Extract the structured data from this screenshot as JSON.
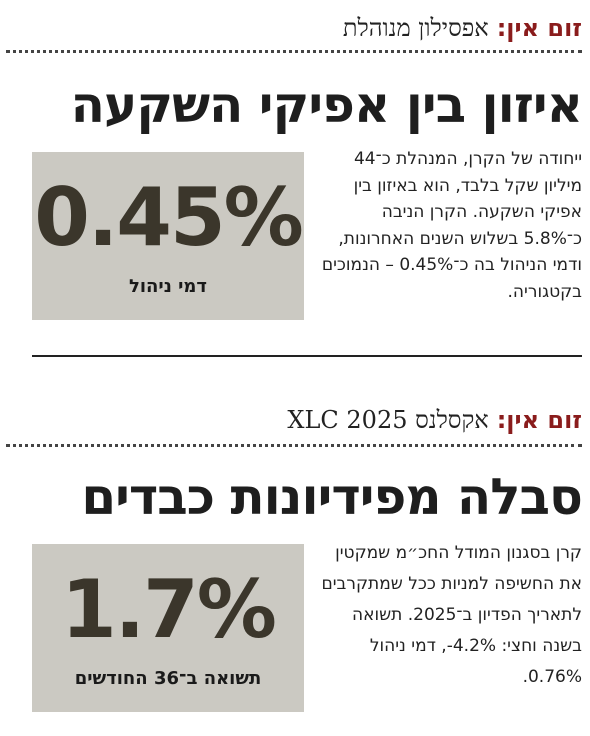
{
  "items": [
    {
      "tag_label": "זום אין:",
      "tag_name": "אפסילון מנוהלת",
      "headline": "איזון בין אפיקי השקעה",
      "body": "ייחודה של הקרן, המנהלת כ־44 מיליון שקל בלבד, הוא באיזון בין אפיקי השקעה. הקרן הניבה כ־5.8% בשלוש השנים האחרונות, ודמי הניהול בה כ־0.45% – הנמוכים בקטגוריה.",
      "stat_value": "0.45%",
      "stat_label": "דמי ניהול"
    },
    {
      "tag_label": "זום אין:",
      "tag_name": "אקסלנס XLC 2025",
      "headline": "סבלה מפידיונות כבדים",
      "body": "קרן בסגנון המודל החכ״מ שמקטין את החשיפה למניות ככל שמתקרבים לתאריך הפדיון ב־2025. תשואה בשנה וחצי: ‎-4.2%, דמי ניהול 0.76%.",
      "stat_value": "1.7%",
      "stat_label": "תשואה ב־36 החודשים"
    }
  ],
  "colors": {
    "accent": "#8a1c1c",
    "box_bg": "#cbc9c2",
    "stat_text": "#3b362b"
  }
}
